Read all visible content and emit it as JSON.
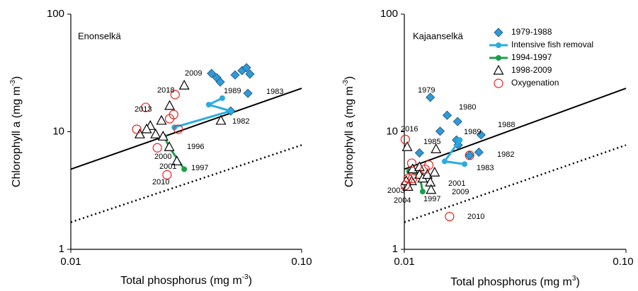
{
  "chart_data": [
    {
      "type": "scatter",
      "title": "Enonselkä",
      "x_label": {
        "main": "Total phosphorus (mg m",
        "sup": "-3",
        "end": ")"
      },
      "y_label": {
        "main": "Chlorophyll a (mg m",
        "sup": "-3",
        "end": ")"
      },
      "log_x": true,
      "log_y": true,
      "xlim": [
        0.01,
        0.1
      ],
      "ylim": [
        1,
        100
      ],
      "xticks": [
        0.01,
        {
          "value": 0.1,
          "label": "0.10"
        }
      ],
      "yticks": [
        1,
        10,
        100
      ],
      "reference_lines": [
        {
          "x": [
            0.01,
            0.1
          ],
          "values": [
            4.8,
            23.4
          ],
          "style": "solid",
          "color": "#000000"
        },
        {
          "x": [
            0.01,
            0.1
          ],
          "values": [
            1.7,
            7.7
          ],
          "style": "dotted",
          "color": "#000000"
        }
      ],
      "series": [
        {
          "marker": "diamond",
          "color": "#2e9bd6",
          "x": [
            0.0407,
            0.0429,
            0.0444,
            0.0515,
            0.0552,
            0.0577,
            0.0597,
            0.0585,
            0.0493
          ],
          "values": [
            31.3,
            28.8,
            26.5,
            30.4,
            33.1,
            35.0,
            30.9,
            21.2,
            15.0
          ]
        },
        {
          "marker": "dot",
          "line": true,
          "color": "#29abe2",
          "x": [
            0.0453,
            0.0396,
            0.0493,
            0.0281
          ],
          "values": [
            19.3,
            17.0,
            15.0,
            10.9
          ]
        },
        {
          "marker": "dot",
          "line": true,
          "color": "#1c9e48",
          "x": [
            0.0254,
            0.0267,
            0.031
          ],
          "values": [
            9.1,
            7.4,
            4.8
          ]
        },
        {
          "marker": "triangle",
          "color": "#000000",
          "x": [
            0.031,
            0.0268,
            0.0221,
            0.0213,
            0.0199,
            0.0233,
            0.0251,
            0.0247,
            0.0267,
            0.0288,
            0.0447
          ],
          "values": [
            24.7,
            16.6,
            11.2,
            10.5,
            9.5,
            9.5,
            9.1,
            12.4,
            7.4,
            5.6,
            12.4
          ]
        },
        {
          "marker": "circle",
          "color": "#e8201e",
          "x": [
            0.0283,
            0.0211,
            0.0279,
            0.0268,
            0.0193,
            0.0292,
            0.0237,
            0.0261
          ],
          "values": [
            20.7,
            16.1,
            14.0,
            12.9,
            10.5,
            10.5,
            7.3,
            4.3
          ]
        }
      ],
      "annotations": [
        {
          "text": "2009",
          "color": "#000000"
        },
        {
          "text": "2018",
          "color": "#e8201e"
        },
        {
          "text": "1989",
          "color": "#29abe2"
        },
        {
          "text": "1983",
          "color": "#000000"
        },
        {
          "text": "2013",
          "color": "#e8201e"
        },
        {
          "text": "1982",
          "color": "#000000"
        },
        {
          "text": "1996",
          "color": "#000000"
        },
        {
          "text": "2000",
          "color": "#000000"
        },
        {
          "text": "2001",
          "color": "#000000"
        },
        {
          "text": "1997",
          "color": "#000000"
        },
        {
          "text": "2010",
          "color": "#e8201e"
        }
      ]
    },
    {
      "type": "scatter",
      "title": "Kajaanselkä",
      "x_label": {
        "main": "Total phosphorus (mg m",
        "sup": "3",
        "end": ")"
      },
      "y_label": {
        "main": "Chlorophyll a (mg m",
        "sup": "-3",
        "end": ")"
      },
      "log_x": true,
      "log_y": true,
      "xlim": [
        0.01,
        0.1
      ],
      "ylim": [
        1,
        100
      ],
      "xticks": [
        0.01,
        {
          "value": 0.1,
          "label": "0.10"
        }
      ],
      "yticks": [
        1,
        10,
        100
      ],
      "legend": "upper right",
      "reference_lines": [
        {
          "x": [
            0.01,
            0.1
          ],
          "values": [
            4.8,
            23.4
          ],
          "style": "solid",
          "color": "#000000"
        },
        {
          "x": [
            0.01,
            0.1
          ],
          "values": [
            1.7,
            7.7
          ],
          "style": "dotted",
          "color": "#000000"
        }
      ],
      "series": [
        {
          "name": "1979-1988",
          "marker": "diamond",
          "color": "#2e9bd6",
          "x": [
            0.0131,
            0.0156,
            0.0145,
            0.0174,
            0.0222,
            0.0175,
            0.0217,
            0.0197,
            0.0117,
            0.0172
          ],
          "values": [
            19.6,
            13.8,
            10.1,
            12.2,
            9.4,
            7.7,
            6.7,
            6.3,
            6.6,
            8.5
          ]
        },
        {
          "name": "Intensive fish removal",
          "marker": "dot",
          "line": true,
          "color": "#29abe2",
          "x": [
            0.0178,
            0.0152,
            0.0187
          ],
          "values": [
            8.5,
            5.6,
            5.3
          ]
        },
        {
          "name": "1994-1997",
          "marker": "dot",
          "line": true,
          "color": "#1c9e48",
          "x": [
            0.0105,
            0.0117,
            0.0121
          ],
          "values": [
            4.6,
            4.3,
            3.1
          ]
        },
        {
          "name": "1998-2009",
          "marker": "triangle",
          "color": "#000000",
          "x": [
            0.0103,
            0.0109,
            0.0117,
            0.0117,
            0.0121,
            0.0127,
            0.0131,
            0.0137,
            0.0139,
            0.0108,
            0.0132,
            0.0102,
            0.0104
          ],
          "values": [
            7.4,
            4.8,
            5.0,
            4.3,
            4.0,
            4.3,
            3.7,
            4.5,
            7.1,
            3.8,
            3.2,
            3.8,
            3.4
          ]
        },
        {
          "name": "Oxygenation",
          "marker": "circle",
          "color": "#e8201e",
          "x": [
            0.0101,
            0.0108,
            0.0104,
            0.0109,
            0.0129,
            0.0124,
            0.0197,
            0.0101,
            0.016
          ],
          "values": [
            8.6,
            5.4,
            4.0,
            4.0,
            5.2,
            4.8,
            6.3,
            3.5,
            1.9
          ]
        }
      ],
      "annotations": [
        {
          "text": "1979",
          "color": "#000000"
        },
        {
          "text": "1980",
          "color": "#000000"
        },
        {
          "text": "1988",
          "color": "#000000"
        },
        {
          "text": "2016",
          "color": "#e8201e"
        },
        {
          "text": "1985",
          "color": "#000000"
        },
        {
          "text": "1989",
          "color": "#29abe2"
        },
        {
          "text": "1982",
          "color": "#000000"
        },
        {
          "text": "1983",
          "color": "#000000"
        },
        {
          "text": "2001",
          "color": "#000000"
        },
        {
          "text": "2003",
          "color": "#000000"
        },
        {
          "text": "2009",
          "color": "#000000"
        },
        {
          "text": "2004",
          "color": "#000000"
        },
        {
          "text": "1997",
          "color": "#1c9e48"
        },
        {
          "text": "2010",
          "color": "#e8201e"
        }
      ]
    }
  ]
}
